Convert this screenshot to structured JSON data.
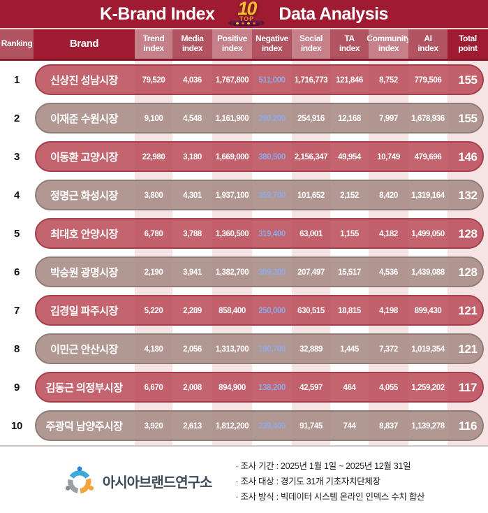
{
  "header": {
    "title_left": "K-Brand Index",
    "title_right": "Data Analysis",
    "badge": {
      "number": "10",
      "label": "TOP"
    }
  },
  "table": {
    "columns": [
      {
        "id": "rank",
        "label": "Ranking",
        "shade": "medium"
      },
      {
        "id": "brand",
        "label": "Brand",
        "shade": "dark"
      },
      {
        "id": "trend",
        "label": "Trend\nindex",
        "shade": "light"
      },
      {
        "id": "media",
        "label": "Media\nindex",
        "shade": "medium"
      },
      {
        "id": "positive",
        "label": "Positive\nindex",
        "shade": "light"
      },
      {
        "id": "negative",
        "label": "Negative\nindex",
        "shade": "medium"
      },
      {
        "id": "social",
        "label": "Social\nindex",
        "shade": "light"
      },
      {
        "id": "ta",
        "label": "TA\nindex",
        "shade": "medium"
      },
      {
        "id": "community",
        "label": "Community\nindex",
        "shade": "light"
      },
      {
        "id": "ai",
        "label": "AI\nindex",
        "shade": "medium"
      },
      {
        "id": "total",
        "label": "Total\npoint",
        "shade": "dark"
      }
    ],
    "rows": [
      {
        "rank": "1",
        "brand": "신상진 성남시장",
        "trend": "79,520",
        "media": "4,036",
        "positive": "1,767,800",
        "negative": "511,000",
        "social": "1,716,773",
        "ta": "121,846",
        "community": "8,752",
        "ai": "779,506",
        "total": "155",
        "tone": "rose"
      },
      {
        "rank": "2",
        "brand": "이재준 수원시장",
        "trend": "9,100",
        "media": "4,548",
        "positive": "1,161,900",
        "negative": "290,200",
        "social": "254,916",
        "ta": "12,168",
        "community": "7,997",
        "ai": "1,678,936",
        "total": "155",
        "tone": "taupe"
      },
      {
        "rank": "3",
        "brand": "이동환 고양시장",
        "trend": "22,980",
        "media": "3,180",
        "positive": "1,669,000",
        "negative": "380,500",
        "social": "2,156,347",
        "ta": "49,954",
        "community": "10,749",
        "ai": "479,696",
        "total": "146",
        "tone": "rose"
      },
      {
        "rank": "4",
        "brand": "정명근 화성시장",
        "trend": "3,800",
        "media": "4,301",
        "positive": "1,937,100",
        "negative": "359,700",
        "social": "101,652",
        "ta": "2,152",
        "community": "8,420",
        "ai": "1,319,164",
        "total": "132",
        "tone": "taupe"
      },
      {
        "rank": "5",
        "brand": "최대호 안양시장",
        "trend": "6,780",
        "media": "3,788",
        "positive": "1,360,500",
        "negative": "319,400",
        "social": "63,001",
        "ta": "1,155",
        "community": "4,182",
        "ai": "1,499,050",
        "total": "128",
        "tone": "rose"
      },
      {
        "rank": "6",
        "brand": "박승원 광명시장",
        "trend": "2,190",
        "media": "3,941",
        "positive": "1,382,700",
        "negative": "309,200",
        "social": "207,497",
        "ta": "15,517",
        "community": "4,536",
        "ai": "1,439,088",
        "total": "128",
        "tone": "taupe"
      },
      {
        "rank": "7",
        "brand": "김경일 파주시장",
        "trend": "5,220",
        "media": "2,289",
        "positive": "858,400",
        "negative": "250,000",
        "social": "630,515",
        "ta": "18,815",
        "community": "4,198",
        "ai": "899,430",
        "total": "121",
        "tone": "rose"
      },
      {
        "rank": "8",
        "brand": "이민근 안산시장",
        "trend": "4,180",
        "media": "2,056",
        "positive": "1,313,700",
        "negative": "190,700",
        "social": "32,889",
        "ta": "1,445",
        "community": "7,372",
        "ai": "1,019,354",
        "total": "121",
        "tone": "taupe"
      },
      {
        "rank": "9",
        "brand": "김동근 의정부시장",
        "trend": "6,670",
        "media": "2,008",
        "positive": "894,900",
        "negative": "138,200",
        "social": "42,597",
        "ta": "464",
        "community": "4,055",
        "ai": "1,259,202",
        "total": "117",
        "tone": "rose"
      },
      {
        "rank": "10",
        "brand": "주광덕 남양주시장",
        "trend": "3,920",
        "media": "2,613",
        "positive": "1,812,200",
        "negative": "239,400",
        "social": "91,745",
        "ta": "744",
        "community": "8,837",
        "ai": "1,139,278",
        "total": "116",
        "tone": "taupe"
      }
    ]
  },
  "footer": {
    "org_name": "아시아브랜드연구소",
    "notes": [
      "· 조사 기간 : 2025년 1월 1일 ~ 2025년 12월 31일",
      "· 조사 대상 : 경기도 31개 기초자치단체장",
      "· 조사 방식 : 빅데이터 시스템 온라인 인덱스 수치 합산"
    ]
  },
  "colors": {
    "banner_red": "#9E1B31",
    "header_medium": "#B15360",
    "header_light": "#C5808A",
    "pill_rose": "#C3646F",
    "pill_taupe": "#B19893",
    "negative_value_blue": "#8FA9E5",
    "column_stripe_pink": "#F5E4E3"
  },
  "chart_data": {
    "type": "table",
    "title": "K-Brand Index TOP 10 Data Analysis",
    "columns": [
      "Ranking",
      "Brand",
      "Trend index",
      "Media index",
      "Positive index",
      "Negative index",
      "Social index",
      "TA index",
      "Community index",
      "AI index",
      "Total point"
    ],
    "rows": [
      [
        1,
        "신상진 성남시장",
        79520,
        4036,
        1767800,
        511000,
        1716773,
        121846,
        8752,
        779506,
        155
      ],
      [
        2,
        "이재준 수원시장",
        9100,
        4548,
        1161900,
        290200,
        254916,
        12168,
        7997,
        1678936,
        155
      ],
      [
        3,
        "이동환 고양시장",
        22980,
        3180,
        1669000,
        380500,
        2156347,
        49954,
        10749,
        479696,
        146
      ],
      [
        4,
        "정명근 화성시장",
        3800,
        4301,
        1937100,
        359700,
        101652,
        2152,
        8420,
        1319164,
        132
      ],
      [
        5,
        "최대호 안양시장",
        6780,
        3788,
        1360500,
        319400,
        63001,
        1155,
        4182,
        1499050,
        128
      ],
      [
        6,
        "박승원 광명시장",
        2190,
        3941,
        1382700,
        309200,
        207497,
        15517,
        4536,
        1439088,
        128
      ],
      [
        7,
        "김경일 파주시장",
        5220,
        2289,
        858400,
        250000,
        630515,
        18815,
        4198,
        899430,
        121
      ],
      [
        8,
        "이민근 안산시장",
        4180,
        2056,
        1313700,
        190700,
        32889,
        1445,
        7372,
        1019354,
        121
      ],
      [
        9,
        "김동근 의정부시장",
        6670,
        2008,
        894900,
        138200,
        42597,
        464,
        4055,
        1259202,
        117
      ],
      [
        10,
        "주광덕 남양주시장",
        3920,
        2613,
        1812200,
        239400,
        91745,
        744,
        8837,
        1139278,
        116
      ]
    ]
  }
}
